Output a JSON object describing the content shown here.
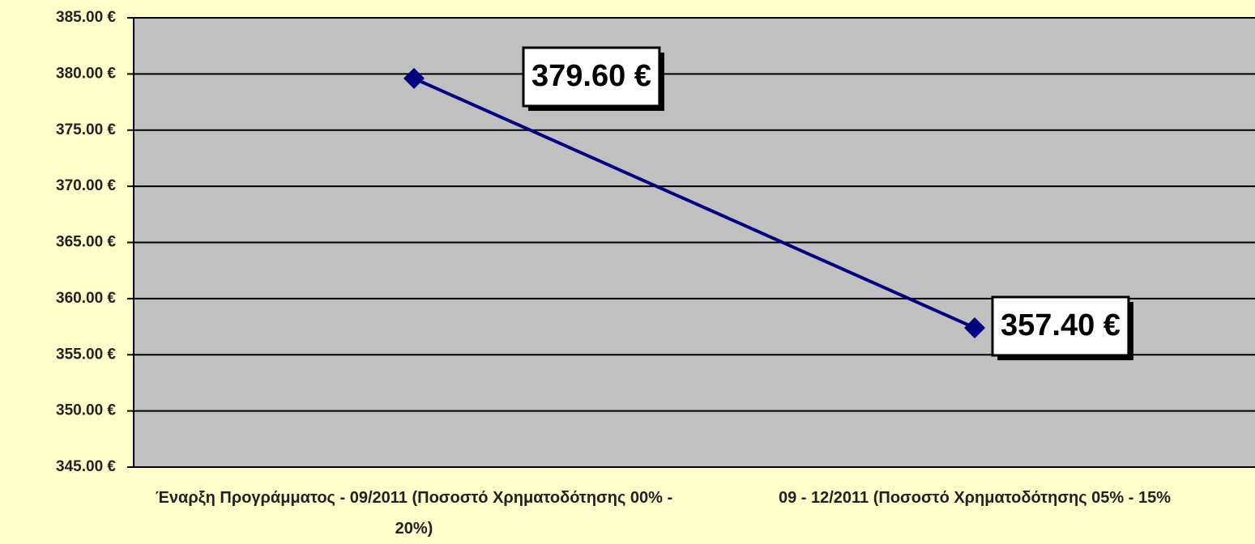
{
  "chart_data": {
    "type": "line",
    "categories": [
      "Έναρξη Προγράμματος - 09/2011 (Ποσοστό Χρηματοδότησης 00% - 20%)",
      "09 - 12/2011 (Ποσοστό Χρηματοδότησης 05% - 15%"
    ],
    "series": [
      {
        "color": "#000080",
        "values": [
          379.6,
          357.4
        ],
        "value_labels": [
          "379.60 €",
          "357.40 €"
        ]
      }
    ],
    "ylim": [
      345,
      385
    ],
    "yticks": [
      {
        "value": 345,
        "label": "345.00 €"
      },
      {
        "value": 350,
        "label": "350.00 €"
      },
      {
        "value": 355,
        "label": "355.00 €"
      },
      {
        "value": 360,
        "label": "360.00 €"
      },
      {
        "value": 365,
        "label": "365.00 €"
      },
      {
        "value": 370,
        "label": "370.00 €"
      },
      {
        "value": 375,
        "label": "375.00 €"
      },
      {
        "value": 380,
        "label": "380.00 €"
      },
      {
        "value": 385,
        "label": "385.00 €"
      }
    ],
    "grid": true
  }
}
